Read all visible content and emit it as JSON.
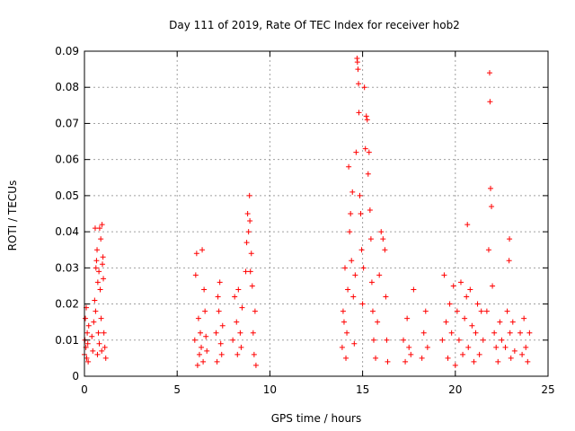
{
  "chart_data": {
    "type": "scatter",
    "title": "Day 111 of 2019, Rate Of TEC Index for receiver hob2",
    "xlabel": "GPS time / hours",
    "ylabel": "ROTI / TECUs",
    "xlim": [
      0,
      25
    ],
    "ylim": [
      0,
      0.09
    ],
    "x_ticks": [
      0,
      5,
      10,
      15,
      20,
      25
    ],
    "x_tick_labels": [
      "0",
      "5",
      "10",
      "15",
      "20",
      "25"
    ],
    "y_ticks": [
      0,
      0.01,
      0.02,
      0.03,
      0.04,
      0.05,
      0.06,
      0.07,
      0.08,
      0.09
    ],
    "y_tick_labels": [
      "0",
      "0.01",
      "0.02",
      "0.03",
      "0.04",
      "0.05",
      "0.06",
      "0.07",
      "0.08",
      "0.09"
    ],
    "grid": true,
    "marker": "+",
    "color": "#ff0000",
    "series": [
      {
        "points": [
          [
            0.0,
            0.006
          ],
          [
            0.03,
            0.01
          ],
          [
            0.05,
            0.016
          ],
          [
            0.08,
            0.008
          ],
          [
            0.1,
            0.019
          ],
          [
            0.12,
            0.005
          ],
          [
            0.15,
            0.012
          ],
          [
            0.18,
            0.009
          ],
          [
            0.2,
            0.004
          ],
          [
            0.23,
            0.014
          ],
          [
            0.4,
            0.011
          ],
          [
            0.45,
            0.007
          ],
          [
            0.5,
            0.015
          ],
          [
            0.55,
            0.021
          ],
          [
            0.58,
            0.041
          ],
          [
            0.6,
            0.018
          ],
          [
            0.62,
            0.03
          ],
          [
            0.65,
            0.032
          ],
          [
            0.68,
            0.035
          ],
          [
            0.7,
            0.006
          ],
          [
            0.72,
            0.026
          ],
          [
            0.75,
            0.012
          ],
          [
            0.78,
            0.029
          ],
          [
            0.8,
            0.009
          ],
          [
            0.82,
            0.041
          ],
          [
            0.85,
            0.024
          ],
          [
            0.88,
            0.038
          ],
          [
            0.9,
            0.016
          ],
          [
            0.93,
            0.007
          ],
          [
            0.95,
            0.042
          ],
          [
            0.97,
            0.031
          ],
          [
            1.0,
            0.033
          ],
          [
            1.02,
            0.027
          ],
          [
            1.05,
            0.012
          ],
          [
            1.1,
            0.008
          ],
          [
            1.15,
            0.005
          ],
          [
            5.95,
            0.01
          ],
          [
            6.0,
            0.028
          ],
          [
            6.05,
            0.034
          ],
          [
            6.1,
            0.003
          ],
          [
            6.15,
            0.016
          ],
          [
            6.2,
            0.006
          ],
          [
            6.25,
            0.012
          ],
          [
            6.3,
            0.008
          ],
          [
            6.35,
            0.035
          ],
          [
            6.4,
            0.004
          ],
          [
            6.45,
            0.024
          ],
          [
            6.5,
            0.018
          ],
          [
            6.55,
            0.011
          ],
          [
            6.6,
            0.007
          ],
          [
            7.1,
            0.012
          ],
          [
            7.15,
            0.004
          ],
          [
            7.2,
            0.022
          ],
          [
            7.25,
            0.018
          ],
          [
            7.3,
            0.026
          ],
          [
            7.35,
            0.009
          ],
          [
            7.4,
            0.006
          ],
          [
            7.45,
            0.014
          ],
          [
            8.0,
            0.01
          ],
          [
            8.1,
            0.022
          ],
          [
            8.2,
            0.015
          ],
          [
            8.25,
            0.006
          ],
          [
            8.3,
            0.024
          ],
          [
            8.4,
            0.012
          ],
          [
            8.45,
            0.008
          ],
          [
            8.5,
            0.019
          ],
          [
            8.7,
            0.029
          ],
          [
            8.75,
            0.037
          ],
          [
            8.8,
            0.045
          ],
          [
            8.85,
            0.04
          ],
          [
            8.9,
            0.05
          ],
          [
            8.92,
            0.043
          ],
          [
            8.95,
            0.029
          ],
          [
            9.0,
            0.034
          ],
          [
            9.05,
            0.025
          ],
          [
            9.1,
            0.012
          ],
          [
            9.15,
            0.006
          ],
          [
            9.2,
            0.018
          ],
          [
            9.25,
            0.003
          ],
          [
            13.9,
            0.008
          ],
          [
            13.95,
            0.018
          ],
          [
            14.0,
            0.015
          ],
          [
            14.05,
            0.03
          ],
          [
            14.1,
            0.005
          ],
          [
            14.15,
            0.012
          ],
          [
            14.2,
            0.024
          ],
          [
            14.25,
            0.058
          ],
          [
            14.3,
            0.04
          ],
          [
            14.35,
            0.045
          ],
          [
            14.4,
            0.032
          ],
          [
            14.45,
            0.051
          ],
          [
            14.5,
            0.022
          ],
          [
            14.55,
            0.009
          ],
          [
            14.6,
            0.028
          ],
          [
            14.65,
            0.062
          ],
          [
            14.7,
            0.088
          ],
          [
            14.72,
            0.087
          ],
          [
            14.75,
            0.085
          ],
          [
            14.78,
            0.081
          ],
          [
            14.8,
            0.073
          ],
          [
            14.85,
            0.05
          ],
          [
            14.9,
            0.045
          ],
          [
            14.95,
            0.035
          ],
          [
            15.0,
            0.02
          ],
          [
            15.05,
            0.03
          ],
          [
            15.1,
            0.08
          ],
          [
            15.15,
            0.063
          ],
          [
            15.2,
            0.072
          ],
          [
            15.25,
            0.071
          ],
          [
            15.3,
            0.056
          ],
          [
            15.35,
            0.062
          ],
          [
            15.4,
            0.046
          ],
          [
            15.45,
            0.038
          ],
          [
            15.5,
            0.026
          ],
          [
            15.55,
            0.018
          ],
          [
            15.6,
            0.01
          ],
          [
            15.7,
            0.005
          ],
          [
            15.8,
            0.015
          ],
          [
            15.9,
            0.028
          ],
          [
            16.0,
            0.04
          ],
          [
            16.1,
            0.038
          ],
          [
            16.2,
            0.035
          ],
          [
            16.25,
            0.022
          ],
          [
            16.3,
            0.01
          ],
          [
            16.35,
            0.004
          ],
          [
            17.2,
            0.01
          ],
          [
            17.3,
            0.004
          ],
          [
            17.4,
            0.016
          ],
          [
            17.5,
            0.008
          ],
          [
            17.6,
            0.006
          ],
          [
            17.75,
            0.024
          ],
          [
            18.2,
            0.005
          ],
          [
            18.3,
            0.012
          ],
          [
            18.4,
            0.018
          ],
          [
            18.5,
            0.008
          ],
          [
            19.3,
            0.01
          ],
          [
            19.4,
            0.028
          ],
          [
            19.5,
            0.015
          ],
          [
            19.6,
            0.005
          ],
          [
            19.7,
            0.02
          ],
          [
            19.8,
            0.012
          ],
          [
            19.9,
            0.025
          ],
          [
            20.0,
            0.003
          ],
          [
            20.1,
            0.018
          ],
          [
            20.2,
            0.01
          ],
          [
            20.3,
            0.026
          ],
          [
            20.4,
            0.006
          ],
          [
            20.5,
            0.016
          ],
          [
            20.6,
            0.022
          ],
          [
            20.65,
            0.042
          ],
          [
            20.7,
            0.008
          ],
          [
            20.8,
            0.024
          ],
          [
            20.9,
            0.014
          ],
          [
            21.0,
            0.004
          ],
          [
            21.1,
            0.012
          ],
          [
            21.2,
            0.02
          ],
          [
            21.3,
            0.006
          ],
          [
            21.4,
            0.018
          ],
          [
            21.5,
            0.01
          ],
          [
            21.7,
            0.018
          ],
          [
            21.8,
            0.035
          ],
          [
            21.85,
            0.084
          ],
          [
            21.87,
            0.076
          ],
          [
            21.9,
            0.052
          ],
          [
            21.95,
            0.047
          ],
          [
            22.0,
            0.025
          ],
          [
            22.1,
            0.012
          ],
          [
            22.2,
            0.008
          ],
          [
            22.3,
            0.004
          ],
          [
            22.4,
            0.015
          ],
          [
            22.5,
            0.01
          ],
          [
            22.7,
            0.008
          ],
          [
            22.8,
            0.018
          ],
          [
            22.9,
            0.032
          ],
          [
            22.92,
            0.038
          ],
          [
            22.95,
            0.012
          ],
          [
            23.0,
            0.005
          ],
          [
            23.1,
            0.015
          ],
          [
            23.2,
            0.007
          ],
          [
            23.5,
            0.012
          ],
          [
            23.6,
            0.006
          ],
          [
            23.7,
            0.016
          ],
          [
            23.8,
            0.008
          ],
          [
            23.9,
            0.004
          ],
          [
            24.0,
            0.012
          ]
        ]
      }
    ]
  }
}
